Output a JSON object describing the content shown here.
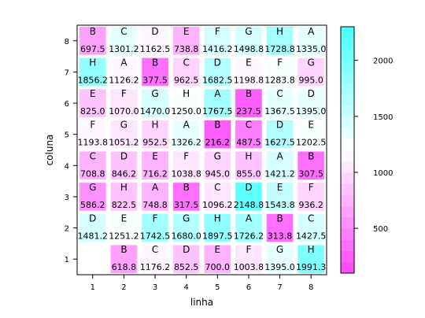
{
  "chart_data": {
    "type": "heatmap",
    "xlabel": "linha",
    "ylabel": "coluna",
    "x_ticks": [
      "1",
      "2",
      "3",
      "4",
      "5",
      "6",
      "7",
      "8"
    ],
    "y_ticks": [
      "1",
      "2",
      "3",
      "4",
      "5",
      "6",
      "7",
      "8"
    ],
    "xlim": [
      0.5,
      8.5
    ],
    "ylim": [
      0.5,
      8.5
    ],
    "colorbar": {
      "range": [
        100,
        2300
      ],
      "ticks": [
        "500",
        "1000",
        "1500",
        "2000"
      ],
      "tick_values": [
        500,
        1000,
        1500,
        2000
      ],
      "low_color": "#ff44ff",
      "mid_color": "#ffffff",
      "high_color": "#44ffff",
      "levels": 22
    },
    "cells": [
      {
        "x": 2,
        "y": 1,
        "letter": "B",
        "value": 618.8
      },
      {
        "x": 3,
        "y": 1,
        "letter": "C",
        "value": 1176.2
      },
      {
        "x": 4,
        "y": 1,
        "letter": "D",
        "value": 852.5
      },
      {
        "x": 5,
        "y": 1,
        "letter": "E",
        "value": 700.0
      },
      {
        "x": 6,
        "y": 1,
        "letter": "F",
        "value": 1003.8
      },
      {
        "x": 7,
        "y": 1,
        "letter": "G",
        "value": 1395.0
      },
      {
        "x": 8,
        "y": 1,
        "letter": "H",
        "value": 1991.3
      },
      {
        "x": 1,
        "y": 2,
        "letter": "D",
        "value": 1481.2
      },
      {
        "x": 2,
        "y": 2,
        "letter": "E",
        "value": 1251.2
      },
      {
        "x": 3,
        "y": 2,
        "letter": "F",
        "value": 1742.5
      },
      {
        "x": 4,
        "y": 2,
        "letter": "G",
        "value": 1680.0
      },
      {
        "x": 5,
        "y": 2,
        "letter": "H",
        "value": 1897.5
      },
      {
        "x": 6,
        "y": 2,
        "letter": "A",
        "value": 1726.2
      },
      {
        "x": 7,
        "y": 2,
        "letter": "B",
        "value": 313.8
      },
      {
        "x": 8,
        "y": 2,
        "letter": "C",
        "value": 1427.5
      },
      {
        "x": 1,
        "y": 3,
        "letter": "G",
        "value": 586.2
      },
      {
        "x": 2,
        "y": 3,
        "letter": "H",
        "value": 822.5
      },
      {
        "x": 3,
        "y": 3,
        "letter": "A",
        "value": 748.8
      },
      {
        "x": 4,
        "y": 3,
        "letter": "B",
        "value": 317.5
      },
      {
        "x": 5,
        "y": 3,
        "letter": "C",
        "value": 1096.2
      },
      {
        "x": 6,
        "y": 3,
        "letter": "D",
        "value": 2148.8
      },
      {
        "x": 7,
        "y": 3,
        "letter": "E",
        "value": 1543.8
      },
      {
        "x": 8,
        "y": 3,
        "letter": "F",
        "value": 936.2
      },
      {
        "x": 1,
        "y": 4,
        "letter": "C",
        "value": 708.8
      },
      {
        "x": 2,
        "y": 4,
        "letter": "D",
        "value": 846.2
      },
      {
        "x": 3,
        "y": 4,
        "letter": "E",
        "value": 716.2
      },
      {
        "x": 4,
        "y": 4,
        "letter": "F",
        "value": 1038.8
      },
      {
        "x": 5,
        "y": 4,
        "letter": "G",
        "value": 945.0
      },
      {
        "x": 6,
        "y": 4,
        "letter": "H",
        "value": 855.0
      },
      {
        "x": 7,
        "y": 4,
        "letter": "A",
        "value": 1421.2
      },
      {
        "x": 8,
        "y": 4,
        "letter": "B",
        "value": 307.5
      },
      {
        "x": 1,
        "y": 5,
        "letter": "F",
        "value": 1193.8
      },
      {
        "x": 2,
        "y": 5,
        "letter": "G",
        "value": 1051.2
      },
      {
        "x": 3,
        "y": 5,
        "letter": "H",
        "value": 952.5
      },
      {
        "x": 4,
        "y": 5,
        "letter": "A",
        "value": 1326.2
      },
      {
        "x": 5,
        "y": 5,
        "letter": "B",
        "value": 216.2
      },
      {
        "x": 6,
        "y": 5,
        "letter": "C",
        "value": 487.5
      },
      {
        "x": 7,
        "y": 5,
        "letter": "D",
        "value": 1627.5
      },
      {
        "x": 8,
        "y": 5,
        "letter": "E",
        "value": 1202.5
      },
      {
        "x": 1,
        "y": 6,
        "letter": "E",
        "value": 825.0
      },
      {
        "x": 2,
        "y": 6,
        "letter": "F",
        "value": 1070.0
      },
      {
        "x": 3,
        "y": 6,
        "letter": "G",
        "value": 1470.0
      },
      {
        "x": 4,
        "y": 6,
        "letter": "H",
        "value": 1250.0
      },
      {
        "x": 5,
        "y": 6,
        "letter": "A",
        "value": 1767.5
      },
      {
        "x": 6,
        "y": 6,
        "letter": "B",
        "value": 237.5
      },
      {
        "x": 7,
        "y": 6,
        "letter": "C",
        "value": 1367.5
      },
      {
        "x": 8,
        "y": 6,
        "letter": "D",
        "value": 1395.0
      },
      {
        "x": 1,
        "y": 7,
        "letter": "H",
        "value": 1856.2
      },
      {
        "x": 2,
        "y": 7,
        "letter": "A",
        "value": 1126.2
      },
      {
        "x": 3,
        "y": 7,
        "letter": "B",
        "value": 377.5
      },
      {
        "x": 4,
        "y": 7,
        "letter": "C",
        "value": 962.5
      },
      {
        "x": 5,
        "y": 7,
        "letter": "D",
        "value": 1682.5
      },
      {
        "x": 6,
        "y": 7,
        "letter": "E",
        "value": 1198.8
      },
      {
        "x": 7,
        "y": 7,
        "letter": "F",
        "value": 1283.8
      },
      {
        "x": 8,
        "y": 7,
        "letter": "G",
        "value": 995.0
      },
      {
        "x": 1,
        "y": 8,
        "letter": "B",
        "value": 697.5
      },
      {
        "x": 2,
        "y": 8,
        "letter": "C",
        "value": 1301.2
      },
      {
        "x": 3,
        "y": 8,
        "letter": "D",
        "value": 1162.5
      },
      {
        "x": 4,
        "y": 8,
        "letter": "E",
        "value": 738.8
      },
      {
        "x": 5,
        "y": 8,
        "letter": "F",
        "value": 1416.2
      },
      {
        "x": 6,
        "y": 8,
        "letter": "G",
        "value": 1498.8
      },
      {
        "x": 7,
        "y": 8,
        "letter": "H",
        "value": 1728.8
      },
      {
        "x": 8,
        "y": 8,
        "letter": "A",
        "value": 1335.0
      }
    ],
    "empty_cells": [
      {
        "x": 1,
        "y": 1
      }
    ]
  }
}
